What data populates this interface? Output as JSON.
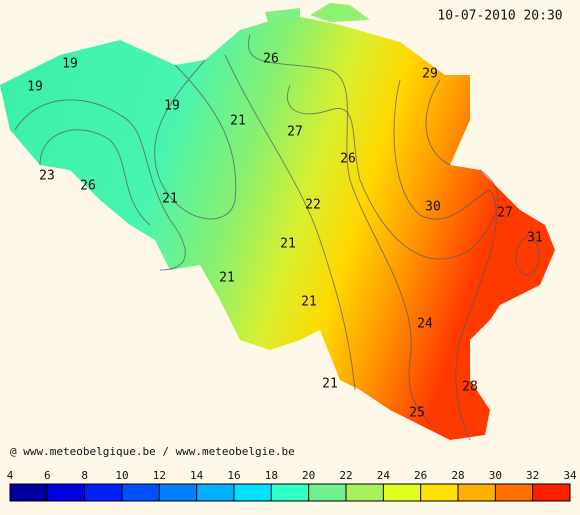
{
  "timestamp": "10-07-2010 20:30",
  "credit": "@ www.meteobelgique.be / www.meteobelgie.be",
  "contour_labels": [
    19,
    19,
    19,
    21,
    26,
    27,
    29,
    26,
    23,
    26,
    21,
    22,
    30,
    27,
    31,
    21,
    21,
    21,
    24,
    21,
    28,
    25
  ],
  "colorbar": {
    "ticks": [
      4,
      6,
      8,
      10,
      12,
      14,
      16,
      18,
      20,
      22,
      24,
      26,
      28,
      30,
      32,
      34
    ],
    "colors": [
      "#0000a0",
      "#0000e0",
      "#0020ff",
      "#0050ff",
      "#0080ff",
      "#00b0ff",
      "#00e0ff",
      "#30ffc8",
      "#70f090",
      "#a8f060",
      "#e0ff20",
      "#ffe000",
      "#ffb000",
      "#ff7000",
      "#ff2000"
    ]
  }
}
